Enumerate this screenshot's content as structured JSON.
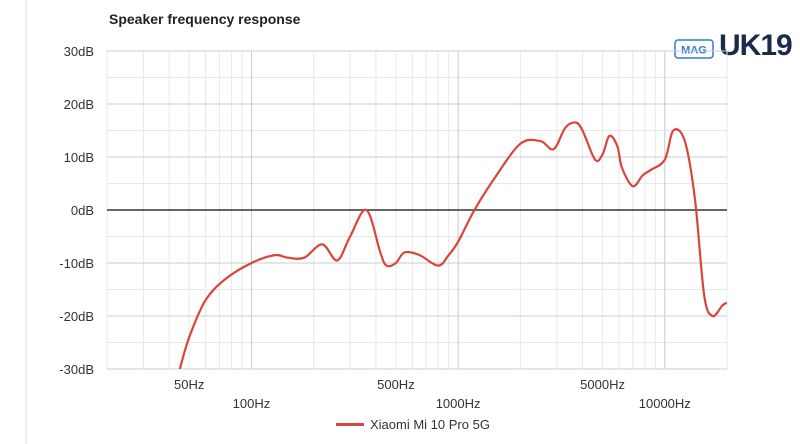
{
  "logo": {
    "tag": "MAG",
    "mark": "UK19"
  },
  "colors": {
    "series": "#d9453c",
    "grid_major": "#cccccc",
    "grid_minor": "#e8e8e8",
    "zero_line": "#333333",
    "logo_blue": "#2e7bd6",
    "logo_red": "#e53935",
    "logo_dark": "#1b2a4a"
  },
  "chart_data": {
    "type": "line",
    "title": "Speaker frequency response",
    "x_scale": "log",
    "xlim": [
      20,
      20000
    ],
    "ylim": [
      -30,
      30
    ],
    "y_ticks": [
      30,
      20,
      10,
      0,
      -10,
      -20,
      -30
    ],
    "y_tick_labels": [
      "30dB",
      "20dB",
      "10dB",
      "0dB",
      "-10dB",
      "-20dB",
      "-30dB"
    ],
    "x_ticks": [
      50,
      100,
      500,
      1000,
      5000,
      10000
    ],
    "x_tick_labels": [
      "50Hz",
      "100Hz",
      "500Hz",
      "1000Hz",
      "5000Hz",
      "10000Hz"
    ],
    "grid": true,
    "legend": "bottom-center",
    "series": [
      {
        "name": "Xiaomi Mi 10 Pro 5G",
        "x": [
          45,
          50,
          60,
          75,
          100,
          130,
          150,
          180,
          220,
          260,
          300,
          360,
          420,
          450,
          500,
          550,
          650,
          800,
          900,
          1000,
          1200,
          1500,
          2000,
          2500,
          2900,
          3300,
          3700,
          4000,
          4600,
          5000,
          5400,
          5900,
          6200,
          7000,
          7800,
          8500,
          10000,
          11000,
          12500,
          14000,
          15500,
          17000,
          19000,
          20000
        ],
        "y": [
          -30,
          -24,
          -17,
          -13,
          -10,
          -8.5,
          -9,
          -9,
          -6.5,
          -9.5,
          -5,
          0,
          -8,
          -10.5,
          -10,
          -8,
          -8.5,
          -10.5,
          -8.5,
          -6,
          0,
          6,
          12.5,
          13,
          11.5,
          15.5,
          16.5,
          15,
          9.5,
          10.5,
          14,
          12,
          8,
          4.5,
          6.5,
          7.5,
          9.5,
          15,
          13,
          2,
          -16,
          -20,
          -18,
          -17.5
        ]
      }
    ]
  }
}
